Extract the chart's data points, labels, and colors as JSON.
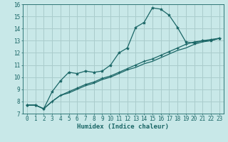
{
  "xlabel": "Humidex (Indice chaleur)",
  "ylabel": "",
  "bg_color": "#c8e8e8",
  "grid_color": "#aacccc",
  "line_color": "#1a6666",
  "xlim": [
    -0.5,
    23.5
  ],
  "ylim": [
    7,
    16
  ],
  "xticks": [
    0,
    1,
    2,
    3,
    4,
    5,
    6,
    7,
    8,
    9,
    10,
    11,
    12,
    13,
    14,
    15,
    16,
    17,
    18,
    19,
    20,
    21,
    22,
    23
  ],
  "yticks": [
    7,
    8,
    9,
    10,
    11,
    12,
    13,
    14,
    15,
    16
  ],
  "series1_x": [
    0,
    1,
    2,
    3,
    4,
    5,
    6,
    7,
    8,
    9,
    10,
    11,
    12,
    13,
    14,
    15,
    16,
    17,
    18,
    19,
    20,
    21,
    22,
    23
  ],
  "series1_y": [
    7.7,
    7.7,
    7.4,
    8.8,
    9.7,
    10.4,
    10.3,
    10.5,
    10.4,
    10.5,
    11.0,
    12.0,
    12.4,
    14.1,
    14.5,
    15.7,
    15.6,
    15.1,
    14.1,
    12.9,
    12.8,
    13.0,
    13.0,
    13.2
  ],
  "series2_x": [
    0,
    1,
    2,
    3,
    4,
    5,
    6,
    7,
    8,
    9,
    10,
    11,
    12,
    13,
    14,
    15,
    16,
    17,
    18,
    19,
    20,
    21,
    22,
    23
  ],
  "series2_y": [
    7.7,
    7.7,
    7.4,
    8.0,
    8.5,
    8.8,
    9.1,
    9.4,
    9.6,
    9.9,
    10.1,
    10.4,
    10.7,
    11.0,
    11.3,
    11.5,
    11.8,
    12.1,
    12.4,
    12.7,
    12.9,
    13.0,
    13.1,
    13.2
  ],
  "series3_x": [
    0,
    1,
    2,
    3,
    4,
    5,
    6,
    7,
    8,
    9,
    10,
    11,
    12,
    13,
    14,
    15,
    16,
    17,
    18,
    19,
    20,
    21,
    22,
    23
  ],
  "series3_y": [
    7.7,
    7.7,
    7.4,
    8.0,
    8.5,
    8.7,
    9.0,
    9.3,
    9.5,
    9.8,
    10.0,
    10.3,
    10.6,
    10.8,
    11.1,
    11.3,
    11.6,
    11.9,
    12.2,
    12.4,
    12.7,
    12.9,
    13.0,
    13.2
  ],
  "tick_fontsize": 5.5,
  "xlabel_fontsize": 6.5
}
